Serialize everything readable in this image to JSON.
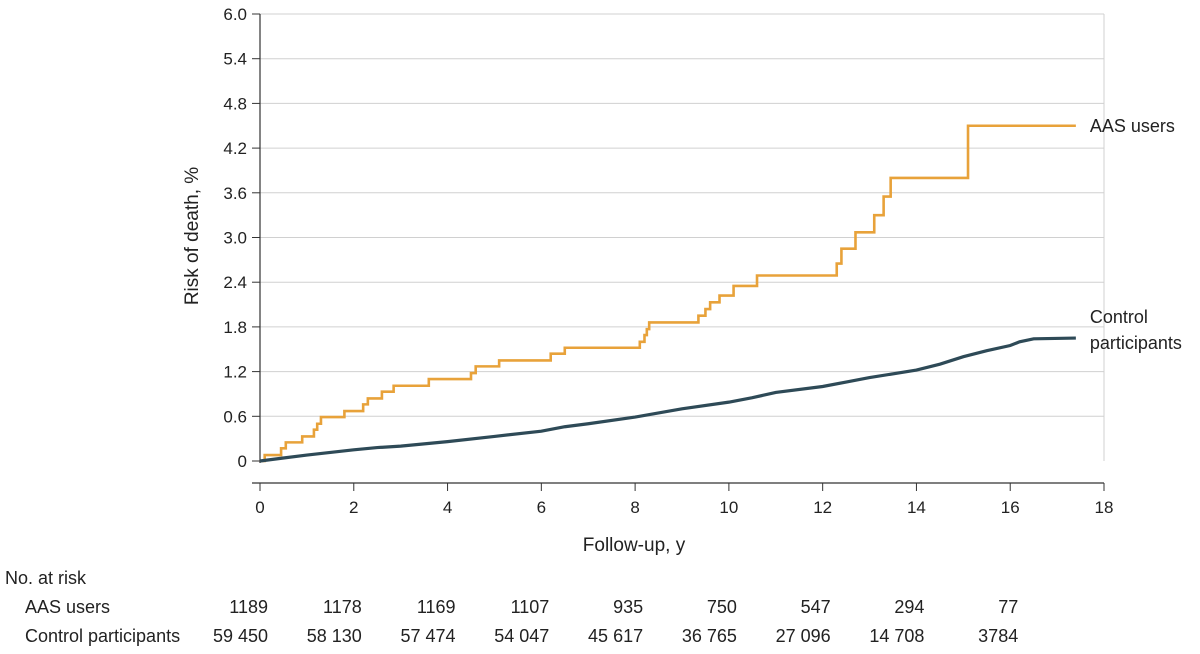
{
  "chart_data": {
    "type": "line",
    "title": "",
    "xlabel": "Follow-up, y",
    "ylabel": "Risk of death, %",
    "xlim": [
      0,
      18
    ],
    "ylim": [
      0,
      6.0
    ],
    "xticks": [
      "0",
      "2",
      "4",
      "6",
      "8",
      "10",
      "12",
      "14",
      "16",
      "18"
    ],
    "yticks": [
      "0",
      "0.6",
      "1.2",
      "1.8",
      "2.4",
      "3.0",
      "3.6",
      "4.2",
      "4.8",
      "5.4",
      "6.0"
    ],
    "grid": "horizontal",
    "series": [
      {
        "name": "AAS users",
        "label_lines": [
          "AAS users"
        ],
        "color": "#E8A23A",
        "step": true,
        "points": [
          [
            0,
            0
          ],
          [
            0.1,
            0.08
          ],
          [
            0.45,
            0.17
          ],
          [
            0.55,
            0.25
          ],
          [
            0.9,
            0.33
          ],
          [
            1.15,
            0.42
          ],
          [
            1.22,
            0.5
          ],
          [
            1.3,
            0.59
          ],
          [
            1.8,
            0.67
          ],
          [
            2.2,
            0.76
          ],
          [
            2.3,
            0.84
          ],
          [
            2.6,
            0.93
          ],
          [
            2.85,
            1.01
          ],
          [
            3.6,
            1.1
          ],
          [
            4.5,
            1.18
          ],
          [
            4.6,
            1.27
          ],
          [
            5.1,
            1.35
          ],
          [
            6.2,
            1.44
          ],
          [
            6.5,
            1.52
          ],
          [
            8.1,
            1.6
          ],
          [
            8.2,
            1.69
          ],
          [
            8.25,
            1.77
          ],
          [
            8.3,
            1.86
          ],
          [
            9.35,
            1.95
          ],
          [
            9.5,
            2.04
          ],
          [
            9.6,
            2.13
          ],
          [
            9.8,
            2.22
          ],
          [
            10.1,
            2.35
          ],
          [
            10.6,
            2.49
          ],
          [
            12.3,
            2.65
          ],
          [
            12.4,
            2.85
          ],
          [
            12.7,
            3.07
          ],
          [
            13.1,
            3.3
          ],
          [
            13.3,
            3.55
          ],
          [
            13.45,
            3.8
          ],
          [
            15.1,
            4.5
          ],
          [
            17.4,
            4.5
          ]
        ]
      },
      {
        "name": "Control participants",
        "label_lines": [
          "Control",
          "participants"
        ],
        "color": "#2E4A57",
        "step": false,
        "points": [
          [
            0,
            0
          ],
          [
            0.5,
            0.04
          ],
          [
            1,
            0.08
          ],
          [
            2,
            0.15
          ],
          [
            2.5,
            0.18
          ],
          [
            3,
            0.2
          ],
          [
            4,
            0.26
          ],
          [
            5,
            0.33
          ],
          [
            6,
            0.4
          ],
          [
            6.5,
            0.46
          ],
          [
            7,
            0.5
          ],
          [
            8,
            0.59
          ],
          [
            9,
            0.7
          ],
          [
            10,
            0.79
          ],
          [
            10.5,
            0.85
          ],
          [
            11,
            0.92
          ],
          [
            12,
            1.0
          ],
          [
            12.5,
            1.06
          ],
          [
            13,
            1.12
          ],
          [
            14,
            1.22
          ],
          [
            14.5,
            1.3
          ],
          [
            15,
            1.4
          ],
          [
            15.5,
            1.48
          ],
          [
            16,
            1.55
          ],
          [
            16.2,
            1.6
          ],
          [
            16.5,
            1.64
          ],
          [
            17.4,
            1.65
          ]
        ]
      }
    ]
  },
  "risk_table": {
    "title": "No. at risk",
    "tick_labels": [
      "0",
      "2",
      "4",
      "6",
      "8",
      "10",
      "12",
      "14",
      "16"
    ],
    "rows": [
      {
        "label": "AAS users",
        "values": [
          "1189",
          "1178",
          "1169",
          "1107",
          "935",
          "750",
          "547",
          "294",
          "77"
        ]
      },
      {
        "label": "Control participants",
        "values": [
          "59 450",
          "58 130",
          "57 474",
          "54 047",
          "45 617",
          "36 765",
          "27 096",
          "14 708",
          "3784"
        ]
      }
    ]
  }
}
